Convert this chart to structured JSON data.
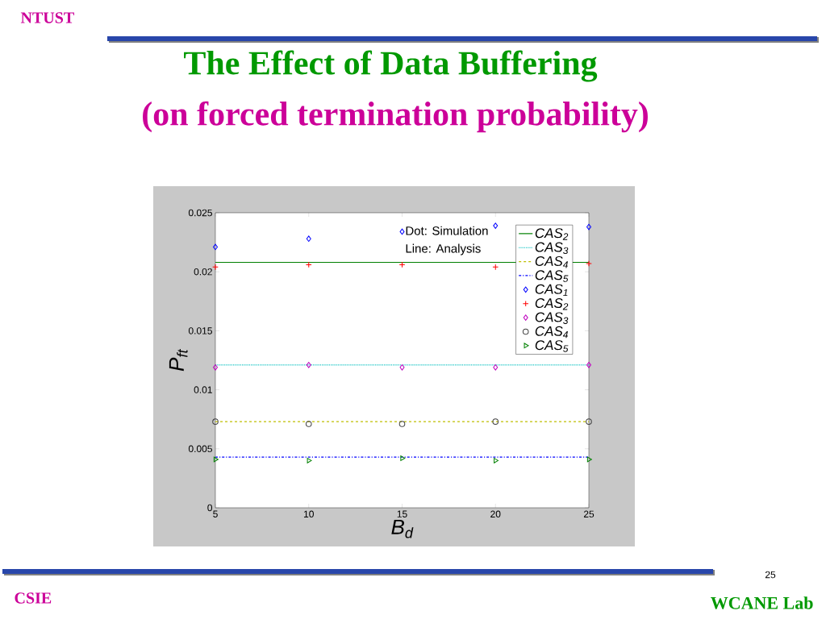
{
  "chart_data": {
    "type": "line",
    "title": "The Effect of Data Buffering",
    "subtitle": "(on forced termination probability)",
    "xlabel": "B$_{d}$",
    "ylabel": "P$_{ft}$",
    "x": [
      5,
      10,
      15,
      20,
      25
    ],
    "series": [
      {
        "name": "CAS$_{1}$",
        "type": "scatter",
        "color": "#0000ff",
        "marker": "diamond",
        "values": [
          0.0221,
          0.0228,
          0.0234,
          0.0239,
          0.0238
        ]
      },
      {
        "name": "CAS$_{2}$",
        "type": "line",
        "color": "#008000",
        "line_style": "solid",
        "values": [
          0.0208,
          0.0208,
          0.0208,
          0.0208,
          0.0208
        ]
      },
      {
        "name": "CAS$_{2}$",
        "type": "scatter",
        "color": "#ff0000",
        "marker": "cross",
        "values": [
          0.0204,
          0.0206,
          0.0206,
          0.0204,
          0.0207
        ]
      },
      {
        "name": "CAS$_{3}$",
        "type": "line",
        "color": "#00bfbf",
        "line_style": "dotted",
        "values": [
          0.0121,
          0.0121,
          0.0121,
          0.0121,
          0.0121
        ]
      },
      {
        "name": "CAS$_{3}$",
        "type": "scatter",
        "color": "#bf00bf",
        "marker": "diamond",
        "values": [
          0.0119,
          0.0121,
          0.0119,
          0.0119,
          0.0121
        ]
      },
      {
        "name": "CAS$_{4}$",
        "type": "line",
        "color": "#bfbf00",
        "line_style": "dashed",
        "values": [
          0.0073,
          0.0073,
          0.0073,
          0.0073,
          0.0073
        ]
      },
      {
        "name": "CAS$_{4}$",
        "type": "scatter",
        "color": "#404040",
        "marker": "circle",
        "values": [
          0.0073,
          0.0071,
          0.0071,
          0.0073,
          0.0073
        ]
      },
      {
        "name": "CAS$_{5}$",
        "type": "line",
        "color": "#0000ff",
        "line_style": "dashdot",
        "values": [
          0.0043,
          0.0043,
          0.0043,
          0.0043,
          0.0043
        ]
      },
      {
        "name": "CAS$_{5}$",
        "type": "scatter",
        "color": "#008000",
        "marker": "triangle",
        "values": [
          0.0041,
          0.004,
          0.0042,
          0.004,
          0.0041
        ]
      }
    ],
    "xlim": [
      5,
      25
    ],
    "xticks": [
      5,
      10,
      15,
      20,
      25
    ],
    "ylim": [
      0,
      0.025
    ],
    "yticks": [
      0,
      0.005,
      0.01,
      0.015,
      0.02,
      0.025
    ],
    "legend": "top right",
    "annotations": [
      "Dot: Simulation",
      "Line: Analysis",
      "NTUST",
      "CSIE",
      "WCANE Lab",
      "25"
    ]
  }
}
